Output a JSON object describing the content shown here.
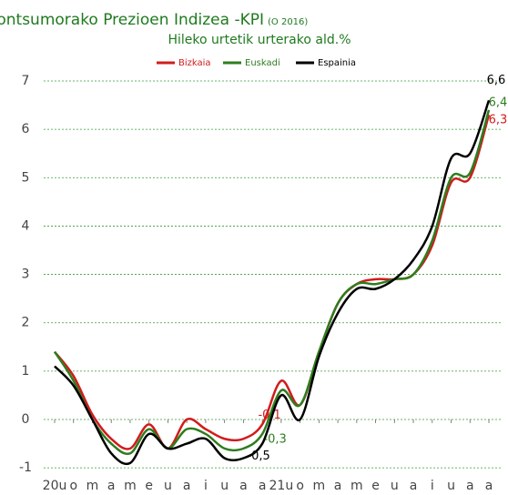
{
  "chart_data": {
    "type": "line",
    "title": "Kontsumorako Prezioen Indizea -KPI",
    "title_note": "(O 2016)",
    "subtitle": "Hileko urtetik urterako ald.%",
    "categories": [
      "20u",
      "o",
      "m",
      "a",
      "m",
      "e",
      "u",
      "a",
      "i",
      "u",
      "a",
      "a",
      "21u",
      "o",
      "m",
      "a",
      "m",
      "e",
      "u",
      "a",
      "i",
      "u",
      "a",
      "a"
    ],
    "series": [
      {
        "name": "Bizkaia",
        "color": "#d01c1c",
        "values": [
          1.4,
          0.9,
          0.1,
          -0.4,
          -0.6,
          -0.1,
          -0.6,
          0.0,
          -0.2,
          -0.4,
          -0.4,
          -0.1,
          0.8,
          0.3,
          1.4,
          2.4,
          2.8,
          2.9,
          2.9,
          3.0,
          3.6,
          4.9,
          5.0,
          6.3
        ],
        "value_labels": [
          null,
          null,
          null,
          null,
          null,
          null,
          null,
          null,
          null,
          null,
          null,
          "-0,1",
          null,
          null,
          null,
          null,
          null,
          null,
          null,
          null,
          null,
          null,
          null,
          "6,3"
        ]
      },
      {
        "name": "Euskadi",
        "color": "#2e7d1e",
        "values": [
          1.4,
          0.8,
          0.0,
          -0.5,
          -0.7,
          -0.2,
          -0.6,
          -0.2,
          -0.3,
          -0.6,
          -0.6,
          -0.3,
          0.6,
          0.3,
          1.4,
          2.4,
          2.8,
          2.8,
          2.9,
          3.0,
          3.7,
          5.0,
          5.1,
          6.4
        ],
        "value_labels": [
          null,
          null,
          null,
          null,
          null,
          null,
          null,
          null,
          null,
          null,
          null,
          "-0,3",
          null,
          null,
          null,
          null,
          null,
          null,
          null,
          null,
          null,
          null,
          null,
          "6,4"
        ]
      },
      {
        "name": "Espainia",
        "color": "#000000",
        "values": [
          1.1,
          0.7,
          0.0,
          -0.7,
          -0.9,
          -0.3,
          -0.6,
          -0.5,
          -0.4,
          -0.8,
          -0.8,
          -0.5,
          0.5,
          0.0,
          1.3,
          2.2,
          2.7,
          2.7,
          2.9,
          3.3,
          4.0,
          5.4,
          5.5,
          6.6
        ],
        "value_labels": [
          null,
          null,
          null,
          null,
          null,
          null,
          null,
          null,
          null,
          null,
          null,
          "-0,5",
          null,
          null,
          null,
          null,
          null,
          null,
          null,
          null,
          null,
          null,
          null,
          "6,6"
        ]
      }
    ],
    "ylim": [
      -1.2,
      7.2
    ],
    "yticks": [
      -1,
      0,
      1,
      2,
      3,
      4,
      5,
      6,
      7
    ],
    "grid": true,
    "legend": "top"
  }
}
